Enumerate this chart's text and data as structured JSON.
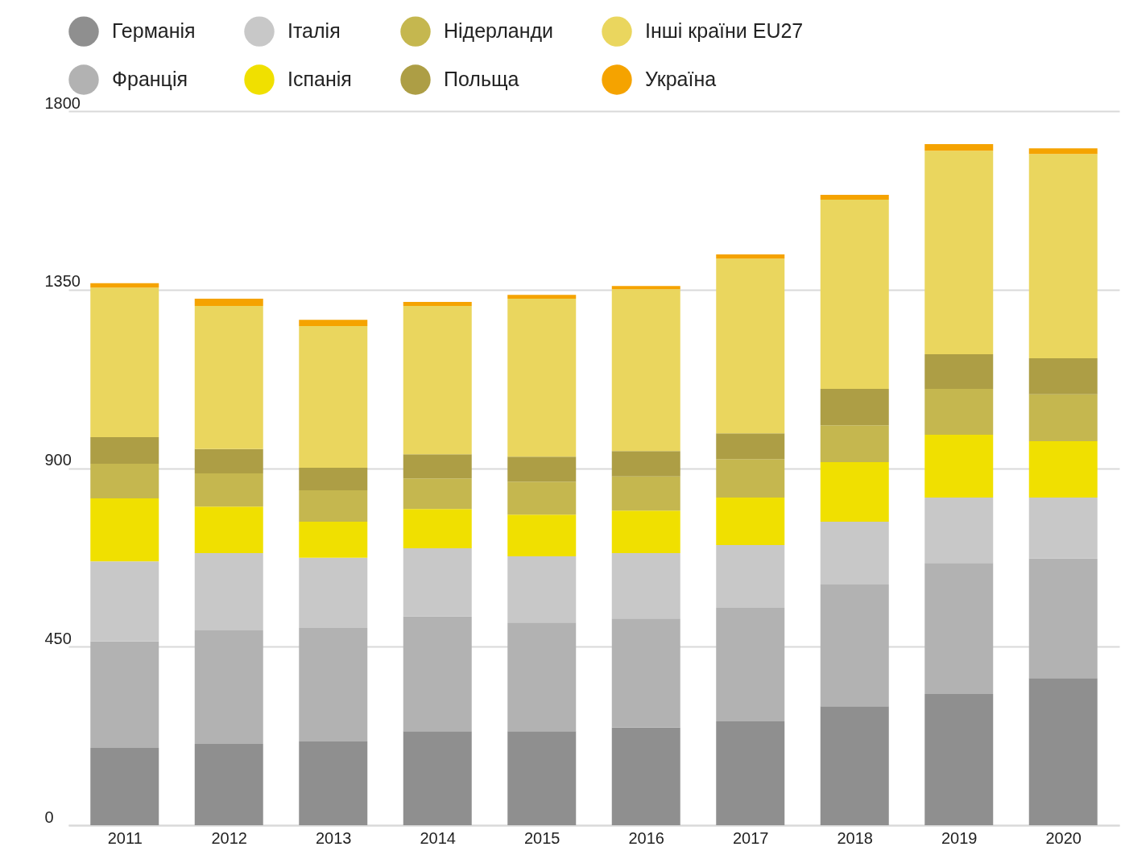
{
  "chart_data": {
    "type": "bar",
    "stacked": true,
    "categories": [
      "2011",
      "2012",
      "2013",
      "2014",
      "2015",
      "2016",
      "2017",
      "2018",
      "2019",
      "2020"
    ],
    "series": [
      {
        "name": "Германія",
        "color": "#8f8f8f",
        "values": [
          195,
          205,
          211,
          237,
          237,
          246,
          262,
          300,
          331,
          371
        ]
      },
      {
        "name": "Франція",
        "color": "#b2b2b2",
        "values": [
          268,
          286,
          286,
          289,
          274,
          275,
          286,
          307,
          330,
          301
        ]
      },
      {
        "name": "Італія",
        "color": "#c8c8c8",
        "values": [
          202,
          195,
          177,
          172,
          167,
          165,
          158,
          158,
          165,
          154
        ]
      },
      {
        "name": "Іспанія",
        "color": "#f0e000",
        "values": [
          159,
          117,
          91,
          99,
          105,
          107,
          120,
          150,
          158,
          142
        ]
      },
      {
        "name": "Нідерланди",
        "color": "#c5b74f",
        "values": [
          87,
          84,
          79,
          77,
          83,
          86,
          97,
          93,
          116,
          118
        ]
      },
      {
        "name": "Польща",
        "color": "#ad9e45",
        "values": [
          67,
          61,
          57,
          61,
          63,
          64,
          65,
          92,
          87,
          91
        ]
      },
      {
        "name": "Інші країни EU27",
        "color": "#ead65e",
        "values": [
          377,
          361,
          357,
          374,
          398,
          408,
          440,
          477,
          513,
          515
        ]
      },
      {
        "name": "Україна",
        "color": "#f5a300",
        "values": [
          11,
          18,
          16,
          10,
          10,
          8,
          11,
          12,
          17,
          14
        ]
      }
    ],
    "ylim": [
      0,
      1800
    ],
    "yticks": [
      0,
      450,
      900,
      1350,
      1800
    ],
    "grid": "y",
    "legend": "top"
  }
}
